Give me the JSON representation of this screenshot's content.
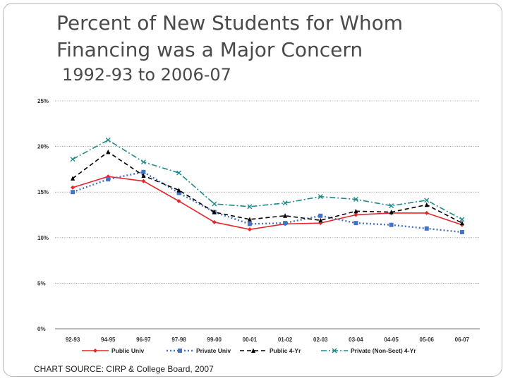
{
  "title_line1": "Percent of New Students for Whom",
  "title_line2": "Financing was a Major Concern",
  "subtitle": "1992-93 to 2006-07",
  "source": "CHART SOURCE: CIRP & College Board, 2007",
  "chart_data": {
    "type": "line",
    "categories": [
      "92-93",
      "94-95",
      "96-97",
      "97-98",
      "99-00",
      "00-01",
      "01-02",
      "02-03",
      "03-04",
      "04-05",
      "05-06",
      "06-07"
    ],
    "yticks": [
      "0%",
      "5%",
      "10%",
      "15%",
      "20%",
      "25%"
    ],
    "ylim": [
      0,
      25
    ],
    "grid": true,
    "legend": "bottom",
    "series": [
      {
        "name": "Public Univ",
        "color": "#e8252a",
        "dash": "solid",
        "marker": "diamond",
        "values": [
          15.5,
          16.7,
          16.2,
          14.0,
          11.7,
          10.9,
          11.5,
          11.6,
          12.5,
          12.7,
          12.7,
          11.4
        ]
      },
      {
        "name": "Private Univ",
        "color": "#4472c4",
        "dash": "dotted",
        "marker": "square",
        "values": [
          15.0,
          16.4,
          17.2,
          14.9,
          12.8,
          11.5,
          11.6,
          12.4,
          11.6,
          11.4,
          11.0,
          10.6
        ]
      },
      {
        "name": "Public 4-Yr",
        "color": "#000000",
        "dash": "dashed",
        "marker": "triangle",
        "values": [
          16.5,
          19.4,
          16.8,
          15.2,
          12.8,
          12.0,
          12.4,
          11.9,
          12.9,
          12.8,
          13.6,
          11.6
        ]
      },
      {
        "name": "Private (Non-Sect) 4-Yr",
        "color": "#1f8b8b",
        "dash": "dashdot",
        "marker": "x",
        "values": [
          18.6,
          20.7,
          18.3,
          17.1,
          13.7,
          13.4,
          13.8,
          14.5,
          14.2,
          13.5,
          14.1,
          12.0
        ]
      }
    ]
  }
}
